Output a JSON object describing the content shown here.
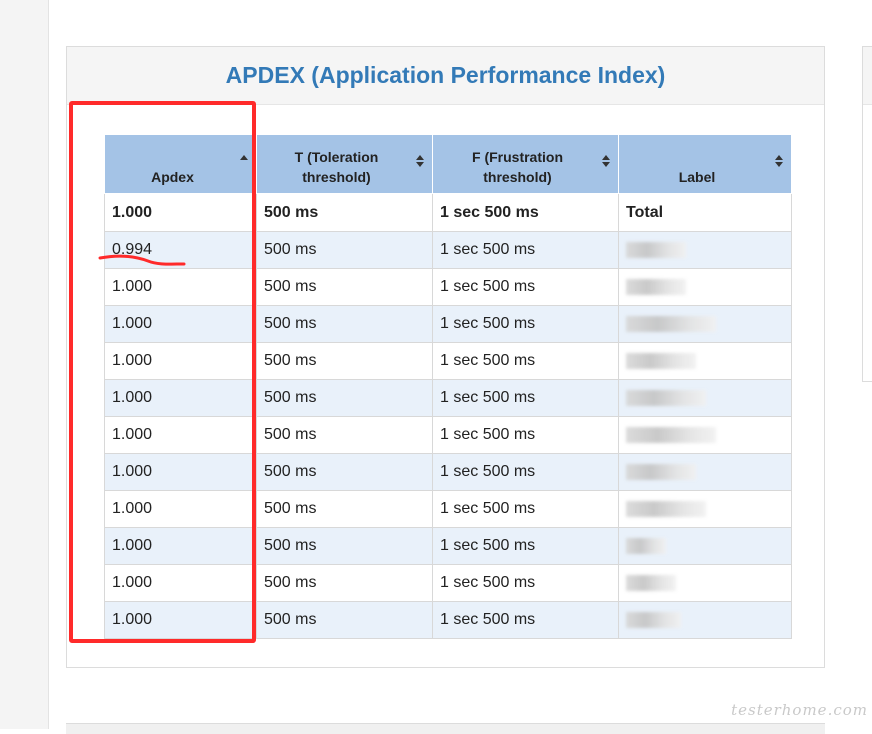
{
  "panel": {
    "title": "APDEX (Application Performance Index)"
  },
  "table": {
    "columns": [
      {
        "label": "Apdex",
        "sort": "asc"
      },
      {
        "label": "T (Toleration threshold)",
        "sort": "both"
      },
      {
        "label": "F (Frustration threshold)",
        "sort": "both"
      },
      {
        "label": "Label",
        "sort": "both"
      }
    ],
    "total": {
      "apdex": "1.000",
      "t": "500 ms",
      "f": "1 sec 500 ms",
      "label": "Total"
    },
    "rows": [
      {
        "apdex": "0.994",
        "t": "500 ms",
        "f": "1 sec 500 ms"
      },
      {
        "apdex": "1.000",
        "t": "500 ms",
        "f": "1 sec 500 ms"
      },
      {
        "apdex": "1.000",
        "t": "500 ms",
        "f": "1 sec 500 ms"
      },
      {
        "apdex": "1.000",
        "t": "500 ms",
        "f": "1 sec 500 ms"
      },
      {
        "apdex": "1.000",
        "t": "500 ms",
        "f": "1 sec 500 ms"
      },
      {
        "apdex": "1.000",
        "t": "500 ms",
        "f": "1 sec 500 ms"
      },
      {
        "apdex": "1.000",
        "t": "500 ms",
        "f": "1 sec 500 ms"
      },
      {
        "apdex": "1.000",
        "t": "500 ms",
        "f": "1 sec 500 ms"
      },
      {
        "apdex": "1.000",
        "t": "500 ms",
        "f": "1 sec 500 ms"
      },
      {
        "apdex": "1.000",
        "t": "500 ms",
        "f": "1 sec 500 ms"
      },
      {
        "apdex": "1.000",
        "t": "500 ms",
        "f": "1 sec 500 ms"
      }
    ]
  },
  "annotation": {
    "color": "#ff2a2a"
  },
  "watermark": "testerhome.com",
  "colors": {
    "title": "#337ab7",
    "header_bg": "#a4c3e6",
    "row_alt_bg": "#e9f1fa"
  }
}
